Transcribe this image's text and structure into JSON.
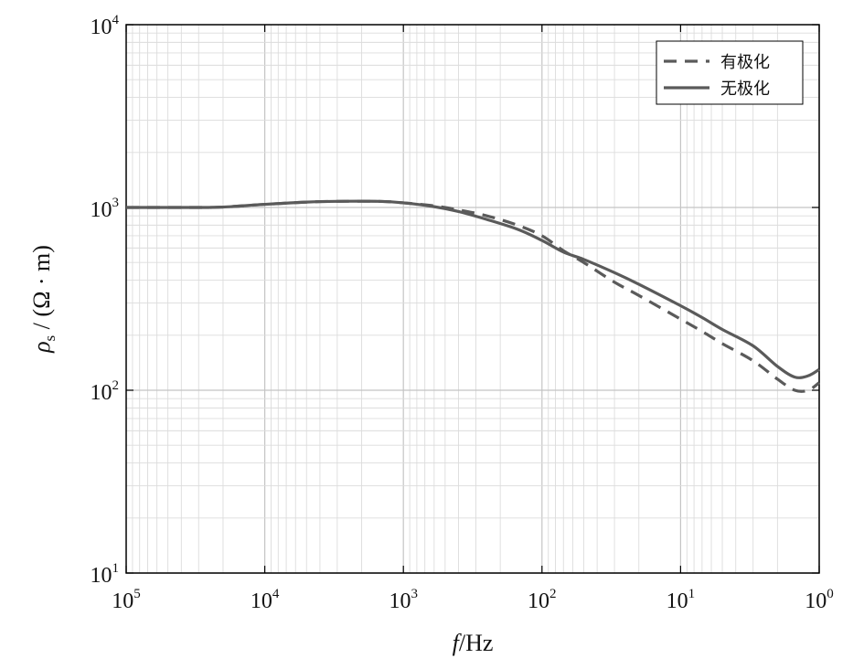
{
  "chart_data": {
    "type": "line",
    "x_scale": "log",
    "y_scale": "log",
    "x_reversed": true,
    "xlim": [
      100000,
      1
    ],
    "ylim": [
      10,
      10000
    ],
    "grid": true,
    "legend_position": "top-right",
    "xlabel": {
      "italic": "f",
      "rest": "/Hz"
    },
    "ylabel": {
      "symbol": "ρ",
      "subscript": "s",
      "rest": " / (Ω · m)"
    },
    "xticks": [
      {
        "value": 100000,
        "base": "10",
        "exp": "5"
      },
      {
        "value": 10000,
        "base": "10",
        "exp": "4"
      },
      {
        "value": 1000,
        "base": "10",
        "exp": "3"
      },
      {
        "value": 100,
        "base": "10",
        "exp": "2"
      },
      {
        "value": 10,
        "base": "10",
        "exp": "1"
      },
      {
        "value": 1,
        "base": "10",
        "exp": "0"
      }
    ],
    "yticks": [
      {
        "value": 10,
        "base": "10",
        "exp": "1"
      },
      {
        "value": 100,
        "base": "10",
        "exp": "2"
      },
      {
        "value": 1000,
        "base": "10",
        "exp": "3"
      },
      {
        "value": 10000,
        "base": "10",
        "exp": "4"
      }
    ],
    "series": [
      {
        "name": "有极化",
        "style": "dashed",
        "color": "#5a5a5a",
        "x": [
          100000,
          30000,
          20000,
          10000,
          5000,
          3000,
          1500,
          1000,
          600,
          400,
          250,
          150,
          100,
          70,
          50,
          30,
          20,
          10,
          7,
          5,
          3,
          2,
          1.5,
          1.2,
          1
        ],
        "y": [
          1000,
          1000,
          1005,
          1040,
          1070,
          1080,
          1080,
          1060,
          1020,
          970,
          900,
          800,
          700,
          580,
          500,
          390,
          330,
          245,
          210,
          180,
          145,
          115,
          100,
          100,
          110
        ]
      },
      {
        "name": "无极化",
        "style": "solid",
        "color": "#5a5a5a",
        "x": [
          100000,
          30000,
          20000,
          10000,
          5000,
          3000,
          1500,
          1000,
          600,
          400,
          250,
          150,
          100,
          70,
          50,
          30,
          20,
          10,
          7,
          5,
          3,
          2,
          1.5,
          1.2,
          1
        ],
        "y": [
          1000,
          1000,
          1005,
          1040,
          1070,
          1080,
          1080,
          1060,
          1010,
          950,
          860,
          760,
          660,
          570,
          520,
          440,
          380,
          290,
          250,
          215,
          175,
          135,
          118,
          120,
          130
        ]
      }
    ]
  }
}
